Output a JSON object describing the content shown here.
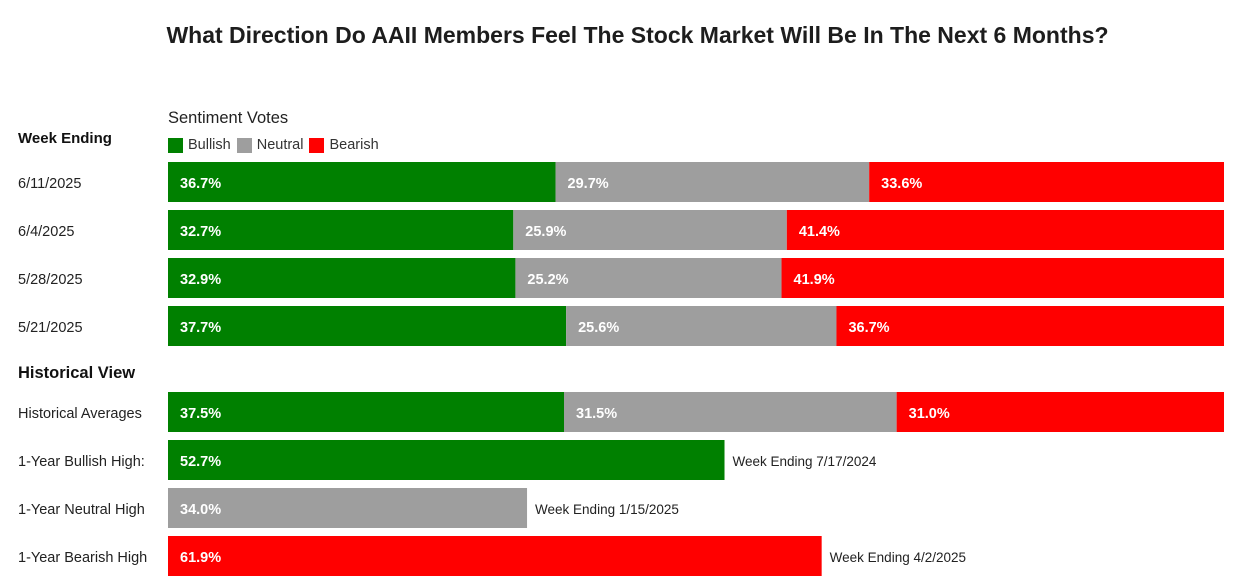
{
  "chart_data": {
    "type": "bar",
    "orientation": "horizontal",
    "stacked": true,
    "title": "What Direction Do AAII Members Feel The Stock Market Will Be In The Next 6 Months?",
    "axis_title": "Sentiment Votes",
    "section_week": "Week Ending",
    "section_history": "Historical View",
    "legend_position": "top-left",
    "series": [
      {
        "name": "Bullish",
        "color": "#008000"
      },
      {
        "name": "Neutral",
        "color": "#9e9e9e"
      },
      {
        "name": "Bearish",
        "color": "#ff0000"
      }
    ],
    "weekly_rows": [
      {
        "label": "6/11/2025",
        "values": [
          36.7,
          29.7,
          33.6
        ]
      },
      {
        "label": "6/4/2025",
        "values": [
          32.7,
          25.9,
          41.4
        ]
      },
      {
        "label": "5/28/2025",
        "values": [
          32.9,
          25.2,
          41.9
        ]
      },
      {
        "label": "5/21/2025",
        "values": [
          37.7,
          25.6,
          36.7
        ]
      }
    ],
    "historical_rows": [
      {
        "label": "Historical Averages",
        "segments": [
          {
            "series": "Bullish",
            "value": 37.5
          },
          {
            "series": "Neutral",
            "value": 31.5
          },
          {
            "series": "Bearish",
            "value": 31.0
          }
        ],
        "note": ""
      },
      {
        "label": "1-Year Bullish High:",
        "segments": [
          {
            "series": "Bullish",
            "value": 52.7
          }
        ],
        "note": "Week Ending 7/17/2024"
      },
      {
        "label": "1-Year Neutral High",
        "segments": [
          {
            "series": "Neutral",
            "value": 34.0
          }
        ],
        "note": "Week Ending 1/15/2025"
      },
      {
        "label": "1-Year Bearish High",
        "segments": [
          {
            "series": "Bearish",
            "value": 61.9
          }
        ],
        "note": "Week Ending 4/2/2025"
      }
    ],
    "value_suffix": "%",
    "xlim": [
      0,
      100
    ],
    "grid": false
  }
}
